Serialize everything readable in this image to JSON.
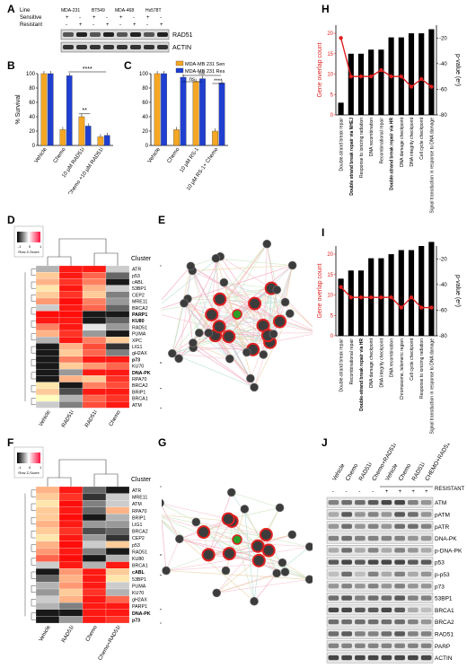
{
  "panels": {
    "A": {
      "letter": "A",
      "row_labels": [
        "Line",
        "Sensitive",
        "Resistant"
      ],
      "lines": [
        "MDA-231",
        "BT549",
        "MDA-468",
        "Hs578T"
      ],
      "sensitive_marks": [
        "+",
        "-",
        "+",
        "-",
        "+",
        "-",
        "+",
        "-"
      ],
      "resistant_marks": [
        "-",
        "+",
        "-",
        "+",
        "-",
        "+",
        "-",
        "+"
      ],
      "blots": [
        "RAD51",
        "ACTIN"
      ]
    },
    "B": {
      "letter": "B",
      "ylabel": "% Survival",
      "yticks": [
        "0",
        "20",
        "40",
        "60",
        "80",
        "100"
      ],
      "sig": [
        "**",
        "****"
      ]
    },
    "C": {
      "letter": "C",
      "yticks": [
        "0",
        "20",
        "40",
        "60",
        "80",
        "100"
      ],
      "legend": [
        "MDA-MB 231 Sen",
        "MDA-MB 231 Res"
      ],
      "sig": [
        "ns",
        "ns",
        "****"
      ]
    },
    "D": {
      "letter": "D",
      "cluster_label": "Cluster",
      "key_label": "Row Z-Score",
      "key_ticks": [
        "-1",
        "0",
        "1"
      ],
      "genes": [
        "ATR",
        "p53",
        "cABL",
        "53BP1",
        "CEP2",
        "MRE11",
        "BRCA2",
        "PARP1",
        "KU80",
        "RAD51",
        "PUMA",
        "XPC",
        "LIG1",
        "gH2AX",
        "p73",
        "KU70",
        "DNA-PK",
        "RPA70",
        "BRCA2",
        "BRIP1",
        "BRCA1",
        "ATM"
      ],
      "bold_genes": [
        "PARP1",
        "KU80",
        "p73",
        "DNA-PK"
      ],
      "clusters": [
        "III",
        "II",
        "I"
      ],
      "columns": [
        "Vehicle",
        "Chemo+RAD51i",
        "RAD51i",
        "Chemo"
      ]
    },
    "E": {
      "letter": "E"
    },
    "F": {
      "letter": "F",
      "cluster_label": "Cluster",
      "key_label": "Row Z-Score",
      "key_ticks": [
        "-1",
        "0",
        "1"
      ],
      "genes": [
        "ATR",
        "MRE11",
        "ATM",
        "RPA70",
        "BRIP1",
        "LIG1",
        "BRCA2",
        "CEP2",
        "p53",
        "RAD51",
        "KU80",
        "BRCA1",
        "cABL",
        "53BP1",
        "PUMA",
        "KU70",
        "gH2AX",
        "PARP1",
        "DNA-PK",
        "p73"
      ],
      "bold_genes": [
        "cABL",
        "DNA-PK",
        "p73"
      ],
      "clusters": [
        "IV",
        "III",
        "II",
        "I"
      ],
      "columns": [
        "Vehicle",
        "RAD51i",
        "Chemo",
        "Chemo+RAD51i"
      ]
    },
    "G": {
      "letter": "G"
    },
    "H": {
      "letter": "H",
      "ylabel_left": "Gene overlap count",
      "ylabel_right": "p-value (eⁿ)",
      "left_ticks": [
        "0",
        "5",
        "10",
        "15",
        "20"
      ],
      "right_ticks": [
        "-20",
        "-40",
        "-60",
        "-80"
      ]
    },
    "I": {
      "letter": "I",
      "ylabel_left": "Gene overlap count",
      "ylabel_right": "p-value (eⁿ)",
      "left_ticks": [
        "0",
        "5",
        "10",
        "15",
        "20"
      ],
      "right_ticks": [
        "-20",
        "-40",
        "-60",
        "-80"
      ]
    },
    "J": {
      "letter": "J",
      "columns": [
        "Vehicle",
        "Chemo",
        "RAD51i",
        "Chemo+RAD51i",
        "Vehicle",
        "Chemo",
        "RAD51i",
        "CHEMO+RAD51i"
      ],
      "resistant_label": "RESISTANT",
      "resistant_marks": [
        "-",
        "-",
        "-",
        "-",
        "+",
        "+",
        "+",
        "+"
      ],
      "blots": [
        "ATM",
        "pATM",
        "pATR",
        "DNA-PK",
        "p-DNA-PK",
        "p53",
        "p-p53",
        "p73",
        "53BP1",
        "BRCA1",
        "BRCA2",
        "RAD51",
        "PARP",
        "ACTIN"
      ]
    }
  },
  "chart_data": [
    {
      "type": "bar",
      "panel": "B",
      "ylabel": "% Survival",
      "ylim": [
        0,
        100
      ],
      "categories": [
        "Vehicle",
        "Chemo",
        "10 μM RAD51i",
        "Chemo +10 μM RAD51i"
      ],
      "series": [
        {
          "values": [
            100,
            22,
            40,
            12
          ],
          "color": "#f5a623"
        },
        {
          "values": [
            100,
            97,
            27,
            14
          ],
          "color": "#1f3fd1"
        }
      ]
    },
    {
      "type": "bar",
      "panel": "C",
      "ylim": [
        0,
        100
      ],
      "categories": [
        "Vehicle",
        "Chemo",
        "10 μM RS-1",
        "10 μM RS-1+ Chemo"
      ],
      "series": [
        {
          "name": "MDA-MB 231 Sen",
          "values": [
            100,
            22,
            89,
            20
          ],
          "color": "#f5a623"
        },
        {
          "name": "MDA-MB 231 Res",
          "values": [
            100,
            95,
            93,
            87
          ],
          "color": "#1f3fd1"
        }
      ]
    },
    {
      "type": "bar",
      "panel": "H",
      "ylabel": "Gene overlap count",
      "ylim": [
        0,
        22
      ],
      "categories": [
        "Double-strand break repair",
        "Double strand break repair via NHEJ",
        "Response to ionizing radiation",
        "DNA recombination",
        "Recombinational repair",
        "Double-strand break repair via HR",
        "DNA damage checkpoint",
        "DNA integrity checkpoint",
        "Cell cycle checkpoint",
        "Signal transduction in response to DNA damage"
      ],
      "bold_categories": [
        "Double strand break repair via NHEJ",
        "Double-strand break repair via HR"
      ],
      "values": [
        3,
        15,
        15,
        16,
        16,
        19,
        19,
        20,
        20,
        21
      ],
      "pvalue": [
        -20,
        -50,
        -50,
        -50,
        -45,
        -50,
        -50,
        -58,
        -52,
        -58
      ]
    },
    {
      "type": "bar",
      "panel": "I",
      "ylabel": "Gene overlap count",
      "ylim": [
        0,
        24
      ],
      "categories": [
        "Double-strand break repair",
        "Recombinational repair",
        "Double-strand break repair via HR",
        "DNA damage checkpoint",
        "DNA integrity checkpoint",
        "DNA recombination",
        "Chromosome, telomeric region",
        "Cell cycle checkpoint",
        "Response to ionizing radiation",
        "Signal transduction in response to DNA damage"
      ],
      "bold_categories": [
        "Double-strand break repair via HR"
      ],
      "values": [
        14,
        16,
        16,
        19,
        19,
        20,
        21,
        21,
        22,
        23
      ],
      "pvalue": [
        -42,
        -50,
        -50,
        -50,
        -50,
        -50,
        -58,
        -50,
        -58,
        -58
      ]
    }
  ]
}
